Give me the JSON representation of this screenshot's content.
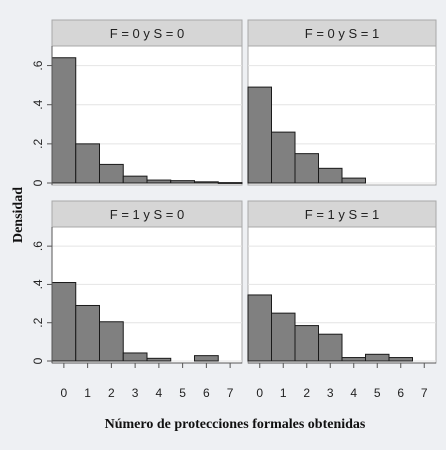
{
  "chart_data": {
    "type": "bar",
    "ylabel": "Densidad",
    "xlabel": "Número de protecciones formales obtenidas",
    "xlim": [
      -0.5,
      7.5
    ],
    "ylim": [
      0,
      0.7
    ],
    "xticks": [
      "0",
      "1",
      "2",
      "3",
      "4",
      "5",
      "6",
      "7"
    ],
    "yticks": [
      "0",
      ".2",
      ".4",
      ".6"
    ],
    "ytick_values": [
      0,
      0.2,
      0.4,
      0.6
    ],
    "grid": "horizontal",
    "colors": {
      "bar": "#808080",
      "strip": "#d6d6d6",
      "panel": "#ffffff",
      "background": "#eef0f3"
    },
    "panels": [
      {
        "title": "F = 0 y S = 0",
        "x": [
          0,
          1,
          2,
          3,
          4,
          5,
          6,
          7
        ],
        "values": [
          0.64,
          0.2,
          0.095,
          0.035,
          0.015,
          0.012,
          0.006,
          0.002
        ]
      },
      {
        "title": "F = 0 y S = 1",
        "x": [
          0,
          1,
          2,
          3,
          4
        ],
        "values": [
          0.49,
          0.26,
          0.15,
          0.075,
          0.025
        ]
      },
      {
        "title": "F = 1 y S = 0",
        "x": [
          0,
          1,
          2,
          3,
          4,
          6
        ],
        "values": [
          0.41,
          0.29,
          0.205,
          0.042,
          0.014,
          0.028
        ]
      },
      {
        "title": "F = 1 y S = 1",
        "x": [
          0,
          1,
          2,
          3,
          4,
          5,
          6
        ],
        "values": [
          0.345,
          0.25,
          0.185,
          0.14,
          0.018,
          0.035,
          0.018
        ]
      }
    ]
  }
}
